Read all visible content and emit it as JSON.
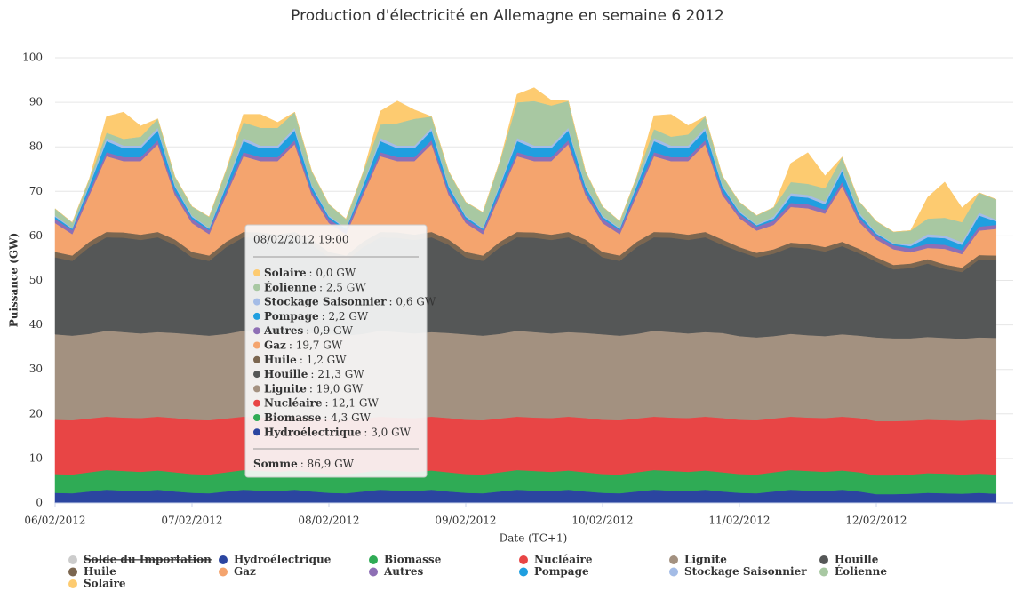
{
  "chart_data": {
    "type": "stacked_area",
    "title": "Production d'électricité en Allemagne en semaine 6 2012",
    "y_label": "Puissance (GW)",
    "x_label": "Date (TC+1)",
    "xlim": [
      0,
      168
    ],
    "xticks": [
      {
        "value": 0,
        "label": "06/02/2012"
      },
      {
        "value": 24,
        "label": "07/02/2012"
      },
      {
        "value": 48,
        "label": "08/02/2012"
      },
      {
        "value": 72,
        "label": "09/02/2012"
      },
      {
        "value": 96,
        "label": "10/02/2012"
      },
      {
        "value": 120,
        "label": "11/02/2012"
      },
      {
        "value": 144,
        "label": "12/02/2012"
      }
    ],
    "ylim": [
      0,
      100
    ],
    "yticks": [
      0,
      10,
      20,
      30,
      40,
      50,
      60,
      70,
      80,
      90,
      100
    ],
    "grid": true,
    "x": [
      0,
      3,
      6,
      9,
      12,
      15,
      18,
      21,
      24,
      27,
      30,
      33,
      36,
      39,
      42,
      45,
      48,
      51,
      54,
      57,
      60,
      63,
      66,
      69,
      72,
      75,
      78,
      81,
      84,
      87,
      90,
      93,
      96,
      99,
      102,
      105,
      108,
      111,
      114,
      117,
      120,
      123,
      126,
      129,
      132,
      135,
      138,
      141,
      144,
      147,
      150,
      153,
      156,
      159,
      162,
      165
    ],
    "series": [
      {
        "name": "Solde du Importation",
        "color": "#cccccc",
        "visible": false
      },
      {
        "name": "Hydroélectrique",
        "color": "#2b45a0",
        "values": [
          2.3,
          2.2,
          2.6,
          3.0,
          2.8,
          2.7,
          3.0,
          2.6,
          2.3,
          2.2,
          2.6,
          3.0,
          2.8,
          2.7,
          3.0,
          2.6,
          2.3,
          2.2,
          2.6,
          3.0,
          2.8,
          2.7,
          3.0,
          2.6,
          2.3,
          2.2,
          2.6,
          3.0,
          2.8,
          2.7,
          3.0,
          2.6,
          2.3,
          2.2,
          2.6,
          3.0,
          2.8,
          2.7,
          3.0,
          2.6,
          2.3,
          2.2,
          2.6,
          3.0,
          2.8,
          2.7,
          3.0,
          2.6,
          2.0,
          2.0,
          2.1,
          2.3,
          2.2,
          2.1,
          2.3,
          2.1
        ]
      },
      {
        "name": "Biomasse",
        "color": "#2fab55",
        "values": [
          4.2,
          4.2,
          4.3,
          4.4,
          4.4,
          4.3,
          4.3,
          4.3,
          4.2,
          4.2,
          4.3,
          4.4,
          4.4,
          4.3,
          4.3,
          4.3,
          4.2,
          4.2,
          4.3,
          4.4,
          4.4,
          4.3,
          4.3,
          4.3,
          4.2,
          4.2,
          4.3,
          4.4,
          4.4,
          4.3,
          4.3,
          4.3,
          4.2,
          4.2,
          4.3,
          4.4,
          4.4,
          4.3,
          4.3,
          4.3,
          4.2,
          4.2,
          4.3,
          4.4,
          4.4,
          4.3,
          4.3,
          4.3,
          4.2,
          4.2,
          4.3,
          4.4,
          4.4,
          4.3,
          4.3,
          4.3
        ]
      },
      {
        "name": "Nucléaire",
        "color": "#e84545",
        "values": [
          12.2,
          12.2,
          12.1,
          12.0,
          12.0,
          12.1,
          12.1,
          12.2,
          12.2,
          12.2,
          12.1,
          12.0,
          12.0,
          12.1,
          12.1,
          12.2,
          12.2,
          12.2,
          12.1,
          12.0,
          12.0,
          12.1,
          12.1,
          12.2,
          12.2,
          12.2,
          12.1,
          12.0,
          12.0,
          12.1,
          12.1,
          12.2,
          12.2,
          12.2,
          12.1,
          12.0,
          12.0,
          12.1,
          12.1,
          12.2,
          12.2,
          12.2,
          12.1,
          12.0,
          12.0,
          12.1,
          12.1,
          12.2,
          12.2,
          12.2,
          12.1,
          12.0,
          12.0,
          12.1,
          12.1,
          12.2
        ]
      },
      {
        "name": "Lignite",
        "color": "#a39180",
        "values": [
          19.2,
          19.0,
          19.0,
          19.3,
          19.2,
          19.0,
          19.0,
          19.1,
          19.2,
          19.0,
          19.0,
          19.3,
          19.2,
          19.0,
          19.0,
          19.1,
          19.2,
          19.0,
          19.0,
          19.3,
          19.2,
          19.0,
          19.0,
          19.1,
          19.2,
          19.0,
          19.0,
          19.3,
          19.2,
          19.0,
          19.0,
          19.1,
          19.2,
          19.0,
          19.0,
          19.3,
          19.2,
          19.0,
          19.0,
          19.1,
          18.8,
          18.6,
          18.5,
          18.6,
          18.5,
          18.4,
          18.5,
          18.5,
          18.8,
          18.6,
          18.5,
          18.6,
          18.5,
          18.4,
          18.5,
          18.5
        ]
      },
      {
        "name": "Houille",
        "color": "#555757",
        "values": [
          17.3,
          16.8,
          19.5,
          21.0,
          21.2,
          21.0,
          21.3,
          19.8,
          17.3,
          16.8,
          19.5,
          21.0,
          21.2,
          21.0,
          21.3,
          19.8,
          17.3,
          16.8,
          19.5,
          21.0,
          21.2,
          21.0,
          21.3,
          19.8,
          17.3,
          16.8,
          19.5,
          21.0,
          21.2,
          21.0,
          21.3,
          19.8,
          17.3,
          16.8,
          19.5,
          21.0,
          21.2,
          21.0,
          21.3,
          19.8,
          19.0,
          18.0,
          18.5,
          19.5,
          19.5,
          19.0,
          19.8,
          18.5,
          17.0,
          15.5,
          15.8,
          16.5,
          15.5,
          15.0,
          17.5,
          17.5
        ]
      },
      {
        "name": "Huile",
        "color": "#7b6650",
        "values": [
          1.2,
          1.2,
          1.2,
          1.2,
          1.2,
          1.2,
          1.2,
          1.2,
          1.2,
          1.2,
          1.2,
          1.2,
          1.2,
          1.2,
          1.2,
          1.2,
          1.2,
          1.2,
          1.2,
          1.2,
          1.2,
          1.2,
          1.2,
          1.2,
          1.2,
          1.2,
          1.2,
          1.2,
          1.2,
          1.2,
          1.2,
          1.2,
          1.2,
          1.2,
          1.2,
          1.2,
          1.2,
          1.2,
          1.2,
          1.2,
          1.0,
          1.0,
          1.0,
          1.0,
          1.0,
          1.0,
          1.0,
          1.0,
          1.0,
          1.0,
          1.0,
          1.0,
          1.0,
          1.0,
          1.0,
          1.0
        ]
      },
      {
        "name": "Gaz",
        "color": "#f4a46e",
        "values": [
          6.5,
          4.8,
          10.5,
          17.0,
          16.0,
          16.5,
          19.7,
          10.0,
          6.5,
          4.8,
          10.5,
          17.0,
          16.0,
          16.5,
          19.7,
          10.0,
          6.5,
          4.8,
          10.5,
          17.0,
          16.0,
          16.5,
          19.7,
          10.0,
          6.5,
          4.8,
          10.5,
          17.0,
          16.0,
          16.5,
          19.7,
          10.0,
          6.5,
          4.8,
          10.5,
          17.0,
          16.0,
          16.5,
          19.7,
          10.0,
          6.5,
          5.0,
          5.5,
          8.0,
          8.0,
          7.5,
          12.5,
          6.0,
          4.0,
          3.5,
          2.5,
          2.5,
          3.5,
          3.0,
          5.5,
          6.0
        ]
      },
      {
        "name": "Autres",
        "color": "#8e6fb5",
        "values": [
          0.9,
          0.9,
          0.9,
          0.9,
          0.9,
          0.9,
          0.9,
          0.9,
          0.9,
          0.9,
          0.9,
          0.9,
          0.9,
          0.9,
          0.9,
          0.9,
          0.9,
          0.9,
          0.9,
          0.9,
          0.9,
          0.9,
          0.9,
          0.9,
          0.9,
          0.9,
          0.9,
          0.9,
          0.9,
          0.9,
          0.9,
          0.9,
          0.9,
          0.9,
          0.9,
          0.9,
          0.9,
          0.9,
          0.9,
          0.9,
          0.9,
          0.9,
          0.9,
          0.9,
          0.9,
          0.9,
          0.9,
          0.9,
          0.9,
          0.9,
          0.9,
          0.9,
          0.9,
          0.9,
          0.9,
          0.9
        ]
      },
      {
        "name": "Pompage",
        "color": "#1f9fe0",
        "values": [
          0.5,
          0.3,
          1.2,
          2.5,
          2.0,
          2.0,
          2.2,
          1.0,
          0.5,
          0.3,
          1.2,
          2.5,
          2.0,
          2.0,
          2.2,
          1.0,
          0.5,
          0.3,
          1.2,
          2.5,
          2.0,
          2.0,
          2.2,
          1.0,
          0.5,
          0.3,
          1.2,
          2.5,
          2.0,
          2.0,
          2.2,
          1.0,
          0.5,
          0.3,
          1.2,
          2.5,
          2.0,
          2.0,
          2.2,
          1.0,
          0.4,
          0.3,
          0.5,
          1.5,
          1.5,
          1.2,
          2.5,
          0.8,
          0.4,
          0.3,
          0.5,
          1.5,
          1.5,
          1.2,
          2.5,
          0.8
        ]
      },
      {
        "name": "Stockage Saisonnier",
        "color": "#a4bce6",
        "values": [
          0.3,
          0.2,
          0.5,
          0.7,
          0.6,
          0.6,
          0.6,
          0.4,
          0.3,
          0.2,
          0.5,
          0.7,
          0.6,
          0.6,
          0.6,
          0.4,
          0.3,
          0.2,
          0.5,
          0.7,
          0.6,
          0.6,
          0.6,
          0.4,
          0.3,
          0.2,
          0.5,
          0.7,
          0.6,
          0.6,
          0.6,
          0.4,
          0.3,
          0.2,
          0.5,
          0.7,
          0.6,
          0.6,
          0.6,
          0.4,
          0.3,
          0.2,
          0.5,
          0.7,
          0.6,
          0.6,
          0.6,
          0.4,
          0.3,
          0.2,
          0.5,
          0.7,
          0.6,
          0.6,
          0.6,
          0.4
        ]
      },
      {
        "name": "Éolienne",
        "color": "#a8c8a2",
        "values": [
          1.5,
          1.2,
          1.0,
          1.2,
          1.5,
          2.0,
          2.0,
          1.8,
          2.0,
          2.5,
          3.0,
          3.5,
          4.0,
          4.0,
          3.5,
          3.0,
          2.5,
          2.0,
          2.5,
          3.0,
          5.0,
          6.0,
          2.5,
          3.0,
          3.0,
          3.5,
          5.0,
          8.0,
          10.0,
          9.0,
          6.0,
          3.0,
          2.0,
          1.5,
          1.5,
          2.0,
          2.0,
          2.5,
          2.5,
          2.0,
          2.0,
          2.0,
          2.0,
          2.5,
          2.5,
          3.0,
          2.5,
          2.5,
          2.5,
          2.5,
          3.0,
          3.5,
          4.0,
          4.5,
          4.5,
          4.5
        ]
      },
      {
        "name": "Solaire",
        "color": "#fdcb70",
        "values": [
          0,
          0,
          0,
          3.6,
          6.0,
          2.4,
          0,
          0,
          0,
          0,
          0,
          1.8,
          3.0,
          1.2,
          0,
          0,
          0,
          0,
          0,
          3.0,
          5.0,
          2.0,
          0,
          0,
          0,
          0,
          0,
          1.8,
          3.0,
          1.2,
          0,
          0,
          0,
          0,
          0,
          3.0,
          5.0,
          2.0,
          0,
          0,
          0,
          0,
          0,
          4.2,
          7.0,
          2.8,
          0,
          0,
          0,
          0,
          0,
          4.8,
          8.0,
          3.2,
          0,
          0
        ]
      }
    ],
    "tooltip": {
      "header": "08/02/2012 19:00",
      "rows": [
        {
          "name": "Solaire",
          "value": ": 0,0 GW"
        },
        {
          "name": "Éolienne",
          "value": ": 2,5 GW"
        },
        {
          "name": "Stockage Saisonnier",
          "value": ": 0,6 GW"
        },
        {
          "name": "Pompage",
          "value": ": 2,2 GW"
        },
        {
          "name": "Autres",
          "value": ": 0,9 GW"
        },
        {
          "name": "Gaz",
          "value": ": 19,7 GW"
        },
        {
          "name": "Huile",
          "value": ": 1,2 GW"
        },
        {
          "name": "Houille",
          "value": ": 21,3 GW"
        },
        {
          "name": "Lignite",
          "value": ": 19,0 GW"
        },
        {
          "name": "Nucléaire",
          "value": ": 12,1 GW"
        },
        {
          "name": "Biomasse",
          "value": ": 4,3 GW"
        },
        {
          "name": "Hydroélectrique",
          "value": ": 3,0 GW"
        }
      ],
      "total_name": "Somme",
      "total_value": ": 86,9 GW"
    }
  }
}
